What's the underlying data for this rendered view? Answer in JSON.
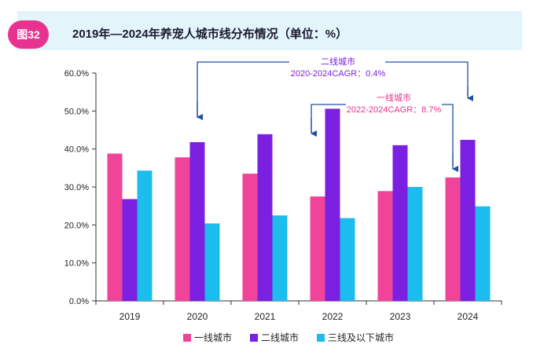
{
  "figure": {
    "badge": "图32",
    "title": "2019年—2024年养宠人城市线分布情况（单位：%）"
  },
  "annotations": {
    "tier2_title": "二线城市",
    "tier2_cagr": "2020-2024CAGR：0.4%",
    "tier1_title": "一线城市",
    "tier1_cagr": "2022-2024CAGR：8.7%"
  },
  "colors": {
    "tier1": "#f0449a",
    "tier2": "#7b1fe0",
    "tier3": "#1cbcef",
    "tier2_annotation": "#7b1fe0",
    "tier1_annotation": "#e8328f",
    "arrow": "#1f4fa0"
  },
  "chart_data": {
    "type": "bar",
    "title": "2019年—2024年养宠人城市线分布情况（单位：%）",
    "categories": [
      "2019",
      "2020",
      "2021",
      "2022",
      "2023",
      "2024"
    ],
    "series": [
      {
        "name": "一线城市",
        "values": [
          38.8,
          37.8,
          33.5,
          27.5,
          28.9,
          32.5
        ]
      },
      {
        "name": "二线城市",
        "values": [
          26.8,
          41.8,
          43.9,
          50.6,
          41.0,
          42.4
        ]
      },
      {
        "name": "三线及以下城市",
        "values": [
          34.3,
          20.4,
          22.5,
          21.8,
          30.0,
          24.9
        ]
      }
    ],
    "y_ticks": [
      "0.0%",
      "10.0%",
      "20.0%",
      "30.0%",
      "40.0%",
      "50.0%",
      "60.0%"
    ],
    "ylim": [
      0,
      60
    ],
    "legend_position": "bottom",
    "xlabel": "",
    "ylabel": ""
  }
}
